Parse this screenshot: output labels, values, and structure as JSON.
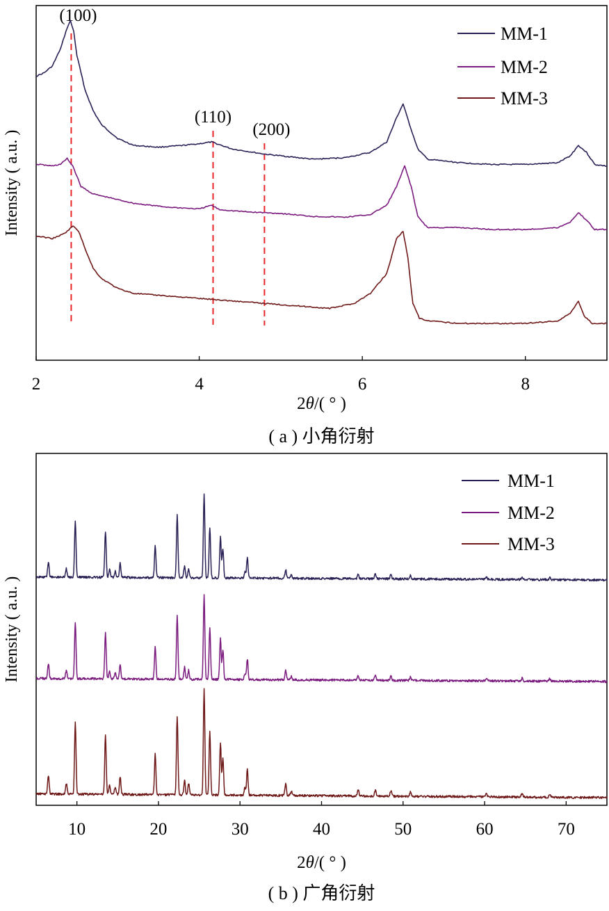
{
  "colors": {
    "MM-1": "#2a1f55",
    "MM-2": "#7a1a7e",
    "MM-3": "#6e1717",
    "reference_line": "#e8262a"
  },
  "chart_data": [
    {
      "type": "line",
      "panel": "a",
      "caption": "( a ) 小角衍射",
      "xlabel_prefix": "2",
      "xlabel_theta": "θ",
      "xlabel_suffix": "/( ° )",
      "ylabel": "Intensity ( a.u. )",
      "xlim": [
        2,
        9
      ],
      "xticks": [
        "2",
        "4",
        "6",
        "8"
      ],
      "yticks_shown": false,
      "legend_position": "top-right",
      "series": [
        {
          "name": "MM-1",
          "x": [
            2.0,
            2.1,
            2.2,
            2.3,
            2.38,
            2.42,
            2.46,
            2.5,
            2.6,
            2.7,
            2.8,
            3.0,
            3.2,
            3.5,
            3.8,
            4.0,
            4.15,
            4.4,
            4.8,
            5.0,
            5.4,
            5.8,
            6.1,
            6.3,
            6.42,
            6.5,
            6.58,
            6.68,
            6.8,
            7.2,
            7.6,
            8.0,
            8.4,
            8.55,
            8.65,
            8.75,
            8.85,
            9.0
          ],
          "y": [
            0.84,
            0.85,
            0.87,
            0.92,
            0.98,
            1.0,
            0.97,
            0.9,
            0.8,
            0.74,
            0.7,
            0.66,
            0.64,
            0.635,
            0.64,
            0.645,
            0.65,
            0.63,
            0.615,
            0.61,
            0.6,
            0.605,
            0.62,
            0.65,
            0.72,
            0.76,
            0.7,
            0.63,
            0.6,
            0.59,
            0.585,
            0.585,
            0.59,
            0.61,
            0.64,
            0.62,
            0.585,
            0.58
          ]
        },
        {
          "name": "MM-2",
          "x": [
            2.0,
            2.2,
            2.3,
            2.38,
            2.45,
            2.55,
            2.7,
            2.9,
            3.2,
            3.6,
            4.0,
            4.15,
            4.25,
            4.6,
            5.0,
            5.4,
            5.8,
            6.1,
            6.3,
            6.42,
            6.52,
            6.6,
            6.68,
            6.8,
            7.2,
            7.6,
            8.0,
            8.4,
            8.55,
            8.65,
            8.75,
            8.85,
            9.0
          ],
          "y": [
            0.58,
            0.575,
            0.58,
            0.595,
            0.575,
            0.52,
            0.5,
            0.49,
            0.475,
            0.465,
            0.46,
            0.47,
            0.458,
            0.452,
            0.448,
            0.44,
            0.438,
            0.445,
            0.47,
            0.52,
            0.575,
            0.52,
            0.44,
            0.41,
            0.41,
            0.405,
            0.405,
            0.41,
            0.425,
            0.45,
            0.43,
            0.405,
            0.405
          ]
        },
        {
          "name": "MM-3",
          "x": [
            2.0,
            2.2,
            2.35,
            2.45,
            2.52,
            2.6,
            2.7,
            2.8,
            3.0,
            3.2,
            3.6,
            4.0,
            4.4,
            4.8,
            5.2,
            5.6,
            5.9,
            6.1,
            6.3,
            6.42,
            6.5,
            6.56,
            6.62,
            6.7,
            6.8,
            7.2,
            7.6,
            8.0,
            8.4,
            8.55,
            8.65,
            8.72,
            8.82,
            9.0
          ],
          "y": [
            0.375,
            0.37,
            0.38,
            0.395,
            0.385,
            0.35,
            0.31,
            0.29,
            0.27,
            0.26,
            0.255,
            0.25,
            0.245,
            0.24,
            0.235,
            0.23,
            0.24,
            0.26,
            0.3,
            0.37,
            0.385,
            0.33,
            0.24,
            0.21,
            0.205,
            0.2,
            0.2,
            0.2,
            0.205,
            0.22,
            0.245,
            0.215,
            0.2,
            0.2
          ]
        }
      ],
      "reference_lines": [
        {
          "label": "(100)",
          "x": 2.43
        },
        {
          "label": "(110)",
          "x": 4.17
        },
        {
          "label": "(200)",
          "x": 4.8
        }
      ]
    },
    {
      "type": "line",
      "panel": "b",
      "caption": "( b ) 广角衍射",
      "xlabel_prefix": "2",
      "xlabel_theta": "θ",
      "xlabel_suffix": "/( ° )",
      "ylabel": "Intensity ( a.u. )",
      "xlim": [
        5,
        75
      ],
      "xticks": [
        "10",
        "20",
        "30",
        "40",
        "50",
        "60",
        "70"
      ],
      "yticks_shown": false,
      "legend_position": "top-right",
      "series_names": [
        "MM-1",
        "MM-2",
        "MM-3"
      ],
      "baseline_start": 0.05,
      "baseline_end": 0.0,
      "peaks": [
        {
          "x": 6.5,
          "h": 0.25
        },
        {
          "x": 8.7,
          "h": 0.14
        },
        {
          "x": 9.8,
          "h": 0.95
        },
        {
          "x": 13.5,
          "h": 0.78
        },
        {
          "x": 14.0,
          "h": 0.14
        },
        {
          "x": 14.7,
          "h": 0.1
        },
        {
          "x": 15.3,
          "h": 0.24
        },
        {
          "x": 19.6,
          "h": 0.55
        },
        {
          "x": 22.3,
          "h": 1.05
        },
        {
          "x": 23.2,
          "h": 0.2
        },
        {
          "x": 23.7,
          "h": 0.15
        },
        {
          "x": 25.6,
          "h": 1.4
        },
        {
          "x": 26.3,
          "h": 0.85
        },
        {
          "x": 27.6,
          "h": 0.7
        },
        {
          "x": 27.9,
          "h": 0.5
        },
        {
          "x": 30.6,
          "h": 0.1
        },
        {
          "x": 30.9,
          "h": 0.35
        },
        {
          "x": 35.6,
          "h": 0.15
        },
        {
          "x": 36.3,
          "h": 0.06
        },
        {
          "x": 44.5,
          "h": 0.08
        },
        {
          "x": 46.6,
          "h": 0.08
        },
        {
          "x": 48.5,
          "h": 0.07
        },
        {
          "x": 50.9,
          "h": 0.06
        },
        {
          "x": 60.2,
          "h": 0.04
        },
        {
          "x": 64.6,
          "h": 0.05
        },
        {
          "x": 68.0,
          "h": 0.04
        }
      ]
    }
  ]
}
